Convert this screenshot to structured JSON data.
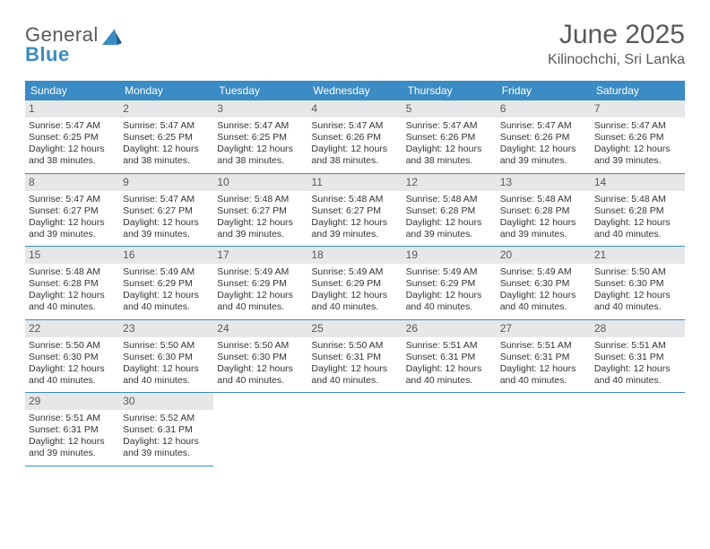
{
  "logo": {
    "brand1": "General",
    "brand2": "Blue"
  },
  "title": "June 2025",
  "location": "Kilinochchi, Sri Lanka",
  "colors": {
    "accent": "#3b8bc4",
    "text_muted": "#58595b",
    "daynum_bg": "#e6e7e8",
    "rule": "#3b8bc4",
    "background": "#ffffff"
  },
  "typography": {
    "title_fontsize_pt": 22,
    "location_fontsize_pt": 12,
    "header_fontsize_pt": 9,
    "body_fontsize_pt": 8
  },
  "calendar": {
    "columns": 7,
    "day_labels": [
      "Sunday",
      "Monday",
      "Tuesday",
      "Wednesday",
      "Thursday",
      "Friday",
      "Saturday"
    ],
    "start_offset": 0,
    "days": [
      {
        "n": "1",
        "sunrise": "Sunrise: 5:47 AM",
        "sunset": "Sunset: 6:25 PM",
        "daylight": "Daylight: 12 hours and 38 minutes."
      },
      {
        "n": "2",
        "sunrise": "Sunrise: 5:47 AM",
        "sunset": "Sunset: 6:25 PM",
        "daylight": "Daylight: 12 hours and 38 minutes."
      },
      {
        "n": "3",
        "sunrise": "Sunrise: 5:47 AM",
        "sunset": "Sunset: 6:25 PM",
        "daylight": "Daylight: 12 hours and 38 minutes."
      },
      {
        "n": "4",
        "sunrise": "Sunrise: 5:47 AM",
        "sunset": "Sunset: 6:26 PM",
        "daylight": "Daylight: 12 hours and 38 minutes."
      },
      {
        "n": "5",
        "sunrise": "Sunrise: 5:47 AM",
        "sunset": "Sunset: 6:26 PM",
        "daylight": "Daylight: 12 hours and 38 minutes."
      },
      {
        "n": "6",
        "sunrise": "Sunrise: 5:47 AM",
        "sunset": "Sunset: 6:26 PM",
        "daylight": "Daylight: 12 hours and 39 minutes."
      },
      {
        "n": "7",
        "sunrise": "Sunrise: 5:47 AM",
        "sunset": "Sunset: 6:26 PM",
        "daylight": "Daylight: 12 hours and 39 minutes."
      },
      {
        "n": "8",
        "sunrise": "Sunrise: 5:47 AM",
        "sunset": "Sunset: 6:27 PM",
        "daylight": "Daylight: 12 hours and 39 minutes."
      },
      {
        "n": "9",
        "sunrise": "Sunrise: 5:47 AM",
        "sunset": "Sunset: 6:27 PM",
        "daylight": "Daylight: 12 hours and 39 minutes."
      },
      {
        "n": "10",
        "sunrise": "Sunrise: 5:48 AM",
        "sunset": "Sunset: 6:27 PM",
        "daylight": "Daylight: 12 hours and 39 minutes."
      },
      {
        "n": "11",
        "sunrise": "Sunrise: 5:48 AM",
        "sunset": "Sunset: 6:27 PM",
        "daylight": "Daylight: 12 hours and 39 minutes."
      },
      {
        "n": "12",
        "sunrise": "Sunrise: 5:48 AM",
        "sunset": "Sunset: 6:28 PM",
        "daylight": "Daylight: 12 hours and 39 minutes."
      },
      {
        "n": "13",
        "sunrise": "Sunrise: 5:48 AM",
        "sunset": "Sunset: 6:28 PM",
        "daylight": "Daylight: 12 hours and 39 minutes."
      },
      {
        "n": "14",
        "sunrise": "Sunrise: 5:48 AM",
        "sunset": "Sunset: 6:28 PM",
        "daylight": "Daylight: 12 hours and 40 minutes."
      },
      {
        "n": "15",
        "sunrise": "Sunrise: 5:48 AM",
        "sunset": "Sunset: 6:28 PM",
        "daylight": "Daylight: 12 hours and 40 minutes."
      },
      {
        "n": "16",
        "sunrise": "Sunrise: 5:49 AM",
        "sunset": "Sunset: 6:29 PM",
        "daylight": "Daylight: 12 hours and 40 minutes."
      },
      {
        "n": "17",
        "sunrise": "Sunrise: 5:49 AM",
        "sunset": "Sunset: 6:29 PM",
        "daylight": "Daylight: 12 hours and 40 minutes."
      },
      {
        "n": "18",
        "sunrise": "Sunrise: 5:49 AM",
        "sunset": "Sunset: 6:29 PM",
        "daylight": "Daylight: 12 hours and 40 minutes."
      },
      {
        "n": "19",
        "sunrise": "Sunrise: 5:49 AM",
        "sunset": "Sunset: 6:29 PM",
        "daylight": "Daylight: 12 hours and 40 minutes."
      },
      {
        "n": "20",
        "sunrise": "Sunrise: 5:49 AM",
        "sunset": "Sunset: 6:30 PM",
        "daylight": "Daylight: 12 hours and 40 minutes."
      },
      {
        "n": "21",
        "sunrise": "Sunrise: 5:50 AM",
        "sunset": "Sunset: 6:30 PM",
        "daylight": "Daylight: 12 hours and 40 minutes."
      },
      {
        "n": "22",
        "sunrise": "Sunrise: 5:50 AM",
        "sunset": "Sunset: 6:30 PM",
        "daylight": "Daylight: 12 hours and 40 minutes."
      },
      {
        "n": "23",
        "sunrise": "Sunrise: 5:50 AM",
        "sunset": "Sunset: 6:30 PM",
        "daylight": "Daylight: 12 hours and 40 minutes."
      },
      {
        "n": "24",
        "sunrise": "Sunrise: 5:50 AM",
        "sunset": "Sunset: 6:30 PM",
        "daylight": "Daylight: 12 hours and 40 minutes."
      },
      {
        "n": "25",
        "sunrise": "Sunrise: 5:50 AM",
        "sunset": "Sunset: 6:31 PM",
        "daylight": "Daylight: 12 hours and 40 minutes."
      },
      {
        "n": "26",
        "sunrise": "Sunrise: 5:51 AM",
        "sunset": "Sunset: 6:31 PM",
        "daylight": "Daylight: 12 hours and 40 minutes."
      },
      {
        "n": "27",
        "sunrise": "Sunrise: 5:51 AM",
        "sunset": "Sunset: 6:31 PM",
        "daylight": "Daylight: 12 hours and 40 minutes."
      },
      {
        "n": "28",
        "sunrise": "Sunrise: 5:51 AM",
        "sunset": "Sunset: 6:31 PM",
        "daylight": "Daylight: 12 hours and 40 minutes."
      },
      {
        "n": "29",
        "sunrise": "Sunrise: 5:51 AM",
        "sunset": "Sunset: 6:31 PM",
        "daylight": "Daylight: 12 hours and 39 minutes."
      },
      {
        "n": "30",
        "sunrise": "Sunrise: 5:52 AM",
        "sunset": "Sunset: 6:31 PM",
        "daylight": "Daylight: 12 hours and 39 minutes."
      }
    ]
  }
}
